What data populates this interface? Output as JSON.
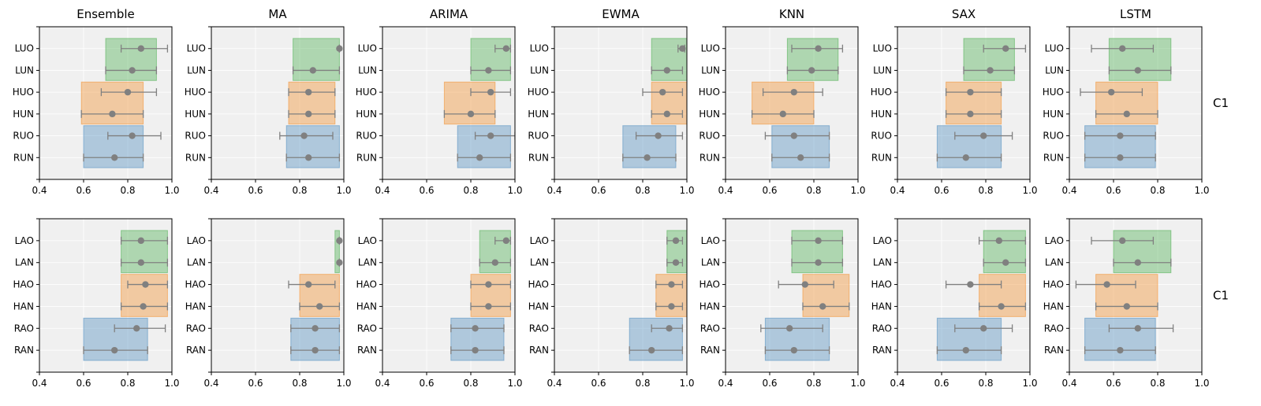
{
  "chart_data": {
    "type": "bar",
    "title": "",
    "xlim": [
      0.4,
      1.0
    ],
    "xticks": [
      0.4,
      0.6,
      0.8,
      1.0
    ],
    "xtick_labels": [
      "0.4",
      "0.6",
      "0.8",
      "1.0"
    ],
    "grid": true,
    "colors": {
      "background": "#f0f0f0",
      "grid": "#ffffff",
      "L": "#4caf50",
      "H": "#f28e2b",
      "R": "#4e8cbf",
      "marker": "#808080",
      "errorbar": "#808080"
    },
    "row_labels": [
      "C1",
      "C1"
    ],
    "columns": [
      {
        "title": "Ensemble",
        "rows": [
          {
            "categories": [
              "LUO",
              "LUN",
              "HUO",
              "HUN",
              "RUO",
              "RUN"
            ],
            "bands": {
              "L": [
                0.7,
                0.93
              ],
              "H": [
                0.59,
                0.87
              ],
              "R": [
                0.6,
                0.87
              ]
            },
            "points": [
              {
                "mean": 0.86,
                "lo": 0.77,
                "hi": 0.98
              },
              {
                "mean": 0.82,
                "lo": 0.7,
                "hi": 0.93
              },
              {
                "mean": 0.8,
                "lo": 0.68,
                "hi": 0.93
              },
              {
                "mean": 0.73,
                "lo": 0.59,
                "hi": 0.87
              },
              {
                "mean": 0.82,
                "lo": 0.71,
                "hi": 0.95
              },
              {
                "mean": 0.74,
                "lo": 0.6,
                "hi": 0.87
              }
            ]
          },
          {
            "categories": [
              "LAO",
              "LAN",
              "HAO",
              "HAN",
              "RAO",
              "RAN"
            ],
            "bands": {
              "L": [
                0.77,
                0.98
              ],
              "H": [
                0.77,
                0.98
              ],
              "R": [
                0.6,
                0.89
              ]
            },
            "points": [
              {
                "mean": 0.86,
                "lo": 0.77,
                "hi": 0.98
              },
              {
                "mean": 0.86,
                "lo": 0.77,
                "hi": 0.98
              },
              {
                "mean": 0.88,
                "lo": 0.8,
                "hi": 0.98
              },
              {
                "mean": 0.87,
                "lo": 0.77,
                "hi": 0.98
              },
              {
                "mean": 0.84,
                "lo": 0.74,
                "hi": 0.97
              },
              {
                "mean": 0.74,
                "lo": 0.6,
                "hi": 0.89
              }
            ]
          }
        ]
      },
      {
        "title": "MA",
        "rows": [
          {
            "categories": [
              "LUO",
              "LUN",
              "HUO",
              "HUN",
              "RUO",
              "RUN"
            ],
            "bands": {
              "L": [
                0.77,
                0.98
              ],
              "H": [
                0.75,
                0.96
              ],
              "R": [
                0.74,
                0.98
              ]
            },
            "points": [
              {
                "mean": 0.98,
                "lo": 0.98,
                "hi": 0.98
              },
              {
                "mean": 0.86,
                "lo": 0.77,
                "hi": 0.98
              },
              {
                "mean": 0.84,
                "lo": 0.75,
                "hi": 0.96
              },
              {
                "mean": 0.84,
                "lo": 0.75,
                "hi": 0.96
              },
              {
                "mean": 0.82,
                "lo": 0.71,
                "hi": 0.95
              },
              {
                "mean": 0.84,
                "lo": 0.74,
                "hi": 0.98
              }
            ]
          },
          {
            "categories": [
              "LAO",
              "LAN",
              "HAO",
              "HAN",
              "RAO",
              "RAN"
            ],
            "bands": {
              "L": [
                0.96,
                0.98
              ],
              "H": [
                0.8,
                0.98
              ],
              "R": [
                0.76,
                0.98
              ]
            },
            "points": [
              {
                "mean": 0.98,
                "lo": 0.98,
                "hi": 0.98
              },
              {
                "mean": 0.98,
                "lo": 0.98,
                "hi": 0.98
              },
              {
                "mean": 0.84,
                "lo": 0.75,
                "hi": 0.96
              },
              {
                "mean": 0.89,
                "lo": 0.8,
                "hi": 0.98
              },
              {
                "mean": 0.87,
                "lo": 0.76,
                "hi": 0.98
              },
              {
                "mean": 0.87,
                "lo": 0.76,
                "hi": 0.98
              }
            ]
          }
        ]
      },
      {
        "title": "ARIMA",
        "rows": [
          {
            "categories": [
              "LUO",
              "LUN",
              "HUO",
              "HUN",
              "RUO",
              "RUN"
            ],
            "bands": {
              "L": [
                0.8,
                0.98
              ],
              "H": [
                0.68,
                0.91
              ],
              "R": [
                0.74,
                0.98
              ]
            },
            "points": [
              {
                "mean": 0.96,
                "lo": 0.91,
                "hi": 0.98
              },
              {
                "mean": 0.88,
                "lo": 0.8,
                "hi": 0.98
              },
              {
                "mean": 0.89,
                "lo": 0.8,
                "hi": 0.98
              },
              {
                "mean": 0.8,
                "lo": 0.68,
                "hi": 0.91
              },
              {
                "mean": 0.89,
                "lo": 0.82,
                "hi": 1.0
              },
              {
                "mean": 0.84,
                "lo": 0.74,
                "hi": 0.98
              }
            ]
          },
          {
            "categories": [
              "LAO",
              "LAN",
              "HAO",
              "HAN",
              "RAO",
              "RAN"
            ],
            "bands": {
              "L": [
                0.84,
                0.98
              ],
              "H": [
                0.8,
                0.98
              ],
              "R": [
                0.71,
                0.95
              ]
            },
            "points": [
              {
                "mean": 0.96,
                "lo": 0.91,
                "hi": 0.98
              },
              {
                "mean": 0.91,
                "lo": 0.84,
                "hi": 0.98
              },
              {
                "mean": 0.88,
                "lo": 0.8,
                "hi": 0.98
              },
              {
                "mean": 0.88,
                "lo": 0.8,
                "hi": 0.98
              },
              {
                "mean": 0.82,
                "lo": 0.71,
                "hi": 0.95
              },
              {
                "mean": 0.82,
                "lo": 0.71,
                "hi": 0.95
              }
            ]
          }
        ]
      },
      {
        "title": "EWMA",
        "rows": [
          {
            "categories": [
              "LUO",
              "LUN",
              "HUO",
              "HUN",
              "RUO",
              "RUN"
            ],
            "bands": {
              "L": [
                0.84,
                1.0
              ],
              "H": [
                0.84,
                1.0
              ],
              "R": [
                0.71,
                0.95
              ]
            },
            "points": [
              {
                "mean": 0.98,
                "lo": 0.96,
                "hi": 0.99
              },
              {
                "mean": 0.91,
                "lo": 0.84,
                "hi": 0.98
              },
              {
                "mean": 0.89,
                "lo": 0.8,
                "hi": 0.98
              },
              {
                "mean": 0.91,
                "lo": 0.84,
                "hi": 0.98
              },
              {
                "mean": 0.87,
                "lo": 0.77,
                "hi": 0.98
              },
              {
                "mean": 0.82,
                "lo": 0.71,
                "hi": 0.95
              }
            ]
          },
          {
            "categories": [
              "LAO",
              "LAN",
              "HAO",
              "HAN",
              "RAO",
              "RAN"
            ],
            "bands": {
              "L": [
                0.91,
                1.0
              ],
              "H": [
                0.86,
                1.0
              ],
              "R": [
                0.74,
                0.98
              ]
            },
            "points": [
              {
                "mean": 0.95,
                "lo": 0.91,
                "hi": 0.98
              },
              {
                "mean": 0.95,
                "lo": 0.91,
                "hi": 0.98
              },
              {
                "mean": 0.93,
                "lo": 0.86,
                "hi": 0.98
              },
              {
                "mean": 0.93,
                "lo": 0.86,
                "hi": 0.98
              },
              {
                "mean": 0.92,
                "lo": 0.84,
                "hi": 0.98
              },
              {
                "mean": 0.84,
                "lo": 0.74,
                "hi": 0.98
              }
            ]
          }
        ]
      },
      {
        "title": "KNN",
        "rows": [
          {
            "categories": [
              "LUO",
              "LUN",
              "HUO",
              "HUN",
              "RUO",
              "RUN"
            ],
            "bands": {
              "L": [
                0.68,
                0.91
              ],
              "H": [
                0.52,
                0.8
              ],
              "R": [
                0.61,
                0.87
              ]
            },
            "points": [
              {
                "mean": 0.82,
                "lo": 0.7,
                "hi": 0.93
              },
              {
                "mean": 0.79,
                "lo": 0.68,
                "hi": 0.91
              },
              {
                "mean": 0.71,
                "lo": 0.57,
                "hi": 0.84
              },
              {
                "mean": 0.66,
                "lo": 0.52,
                "hi": 0.8
              },
              {
                "mean": 0.71,
                "lo": 0.58,
                "hi": 0.87
              },
              {
                "mean": 0.74,
                "lo": 0.61,
                "hi": 0.87
              }
            ]
          },
          {
            "categories": [
              "LAO",
              "LAN",
              "HAO",
              "HAN",
              "RAO",
              "RAN"
            ],
            "bands": {
              "L": [
                0.7,
                0.93
              ],
              "H": [
                0.75,
                0.96
              ],
              "R": [
                0.58,
                0.87
              ]
            },
            "points": [
              {
                "mean": 0.82,
                "lo": 0.7,
                "hi": 0.93
              },
              {
                "mean": 0.82,
                "lo": 0.7,
                "hi": 0.93
              },
              {
                "mean": 0.76,
                "lo": 0.64,
                "hi": 0.89
              },
              {
                "mean": 0.84,
                "lo": 0.75,
                "hi": 0.96
              },
              {
                "mean": 0.69,
                "lo": 0.56,
                "hi": 0.84
              },
              {
                "mean": 0.71,
                "lo": 0.58,
                "hi": 0.87
              }
            ]
          }
        ]
      },
      {
        "title": "SAX",
        "rows": [
          {
            "categories": [
              "LUO",
              "LUN",
              "HUO",
              "HUN",
              "RUO",
              "RUN"
            ],
            "bands": {
              "L": [
                0.7,
                0.93
              ],
              "H": [
                0.62,
                0.87
              ],
              "R": [
                0.58,
                0.87
              ]
            },
            "points": [
              {
                "mean": 0.89,
                "lo": 0.79,
                "hi": 0.98
              },
              {
                "mean": 0.82,
                "lo": 0.7,
                "hi": 0.93
              },
              {
                "mean": 0.73,
                "lo": 0.62,
                "hi": 0.87
              },
              {
                "mean": 0.73,
                "lo": 0.62,
                "hi": 0.87
              },
              {
                "mean": 0.79,
                "lo": 0.66,
                "hi": 0.92
              },
              {
                "mean": 0.71,
                "lo": 0.58,
                "hi": 0.87
              }
            ]
          },
          {
            "categories": [
              "LAO",
              "LAN",
              "HAO",
              "HAN",
              "RAO",
              "RAN"
            ],
            "bands": {
              "L": [
                0.79,
                0.98
              ],
              "H": [
                0.77,
                0.98
              ],
              "R": [
                0.58,
                0.87
              ]
            },
            "points": [
              {
                "mean": 0.86,
                "lo": 0.77,
                "hi": 0.98
              },
              {
                "mean": 0.89,
                "lo": 0.79,
                "hi": 0.98
              },
              {
                "mean": 0.73,
                "lo": 0.62,
                "hi": 0.87
              },
              {
                "mean": 0.87,
                "lo": 0.77,
                "hi": 0.98
              },
              {
                "mean": 0.79,
                "lo": 0.66,
                "hi": 0.92
              },
              {
                "mean": 0.71,
                "lo": 0.58,
                "hi": 0.87
              }
            ]
          }
        ]
      },
      {
        "title": "LSTM",
        "rows": [
          {
            "categories": [
              "LUO",
              "LUN",
              "HUO",
              "HUN",
              "RUO",
              "RUN"
            ],
            "bands": {
              "L": [
                0.58,
                0.86
              ],
              "H": [
                0.52,
                0.8
              ],
              "R": [
                0.47,
                0.79
              ]
            },
            "points": [
              {
                "mean": 0.64,
                "lo": 0.5,
                "hi": 0.78
              },
              {
                "mean": 0.71,
                "lo": 0.58,
                "hi": 0.86
              },
              {
                "mean": 0.59,
                "lo": 0.45,
                "hi": 0.73
              },
              {
                "mean": 0.66,
                "lo": 0.52,
                "hi": 0.8
              },
              {
                "mean": 0.63,
                "lo": 0.47,
                "hi": 0.79
              },
              {
                "mean": 0.63,
                "lo": 0.47,
                "hi": 0.79
              }
            ]
          },
          {
            "categories": [
              "LAO",
              "LAN",
              "HAO",
              "HAN",
              "RAO",
              "RAN"
            ],
            "bands": {
              "L": [
                0.6,
                0.86
              ],
              "H": [
                0.52,
                0.8
              ],
              "R": [
                0.47,
                0.79
              ]
            },
            "points": [
              {
                "mean": 0.64,
                "lo": 0.5,
                "hi": 0.78
              },
              {
                "mean": 0.71,
                "lo": 0.6,
                "hi": 0.86
              },
              {
                "mean": 0.57,
                "lo": 0.43,
                "hi": 0.7
              },
              {
                "mean": 0.66,
                "lo": 0.52,
                "hi": 0.8
              },
              {
                "mean": 0.71,
                "lo": 0.58,
                "hi": 0.87
              },
              {
                "mean": 0.63,
                "lo": 0.47,
                "hi": 0.79
              }
            ]
          }
        ]
      }
    ]
  }
}
